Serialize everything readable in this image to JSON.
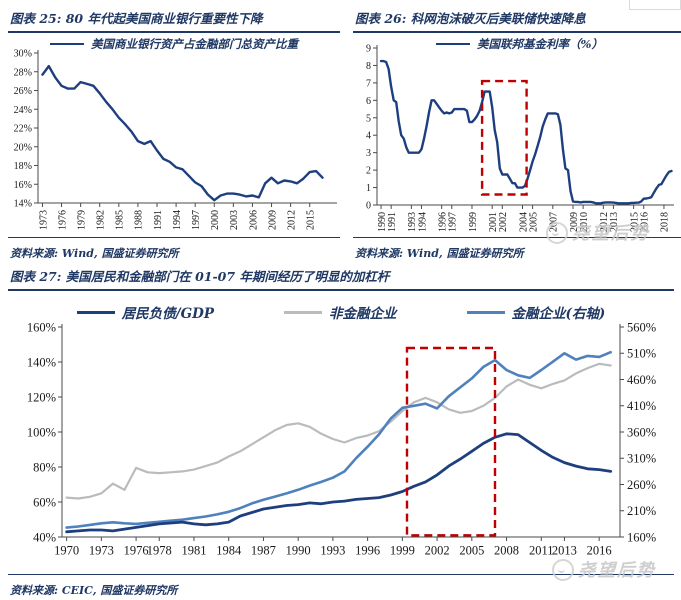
{
  "page": {
    "watermark": "尧望后势",
    "colors": {
      "navy_text": "#1f3864",
      "line_navy": "#1e3f7f",
      "series_gray": "#b9bcbf",
      "series_blue": "#4f81bd",
      "highlight_red": "#c00000"
    }
  },
  "figures": [
    {
      "title": "图表 25: 80 年代起美国商业银行重要性下降",
      "source": "资料来源: Wind, 国盛证券研究所"
    },
    {
      "title": "图表 26: 科网泡沫破灭后美联储快速降息",
      "source": "资料来源: Wind, 国盛证券研究所"
    },
    {
      "title": "图表 27: 美国居民和金融部门在 01-07 年期间经历了明显的加杠杆",
      "source": "资料来源: CEIC, 国盛证券研究所"
    }
  ],
  "chart_data": [
    {
      "type": "line",
      "title": "80 年代起美国商业银行重要性下降",
      "legend": [
        {
          "label": "美国商业银行资产占金融部门总资产比重",
          "color": "#1e3f7f"
        }
      ],
      "x_ticks": [
        "1973",
        "1976",
        "1979",
        "1982",
        "1985",
        "1988",
        "1991",
        "1994",
        "1997",
        "2000",
        "2003",
        "2006",
        "2009",
        "2012",
        "2015"
      ],
      "y_ticks": [
        "14%",
        "16%",
        "18%",
        "20%",
        "22%",
        "24%",
        "26%",
        "28%",
        "30%"
      ],
      "x_range": [
        1972.3,
        2018.5
      ],
      "y_range": [
        14,
        30
      ],
      "grid": false,
      "series": [
        {
          "name": "美国商业银行资产占金融部门总资产比重",
          "axis": "left",
          "color": "#1e3f7f",
          "x_start": 1973,
          "x_step": 1,
          "values": [
            27.7,
            28.6,
            27.4,
            26.5,
            26.2,
            26.2,
            26.9,
            26.7,
            26.5,
            25.7,
            24.8,
            24.0,
            23.1,
            22.4,
            21.6,
            20.6,
            20.3,
            20.6,
            19.6,
            18.7,
            18.4,
            17.8,
            17.6,
            16.9,
            16.2,
            15.8,
            14.9,
            14.3,
            14.8,
            15.0,
            15.0,
            14.9,
            14.7,
            14.8,
            14.6,
            16.1,
            16.7,
            16.1,
            16.4,
            16.3,
            16.1,
            16.6,
            17.3,
            17.4,
            16.7
          ]
        }
      ]
    },
    {
      "type": "line",
      "title": "科网泡沫破灭后美联储快速降息",
      "legend": [
        {
          "label": "美国联邦基金利率（%）",
          "color": "#1e3f7f"
        }
      ],
      "x_ticks": [
        "1990",
        "1991",
        "1993",
        "1994",
        "1996",
        "1997",
        "1999",
        "2001",
        "2002",
        "2004",
        "2005",
        "2007",
        "2009",
        "2010",
        "2012",
        "2013",
        "2015",
        "2016",
        "2018"
      ],
      "y_ticks": [
        "0",
        "1",
        "2",
        "3",
        "4",
        "5",
        "6",
        "7",
        "8",
        "9"
      ],
      "x_range": [
        1989.6,
        2018.5
      ],
      "y_range": [
        0,
        9
      ],
      "grid": false,
      "series": [
        {
          "name": "美国联邦基金利率（%）",
          "axis": "left",
          "color": "#1e3f7f",
          "x_start": 1990,
          "x_step": 0.25,
          "values": [
            8.25,
            8.25,
            8.2,
            7.8,
            6.8,
            6.0,
            5.9,
            4.8,
            4.0,
            3.8,
            3.3,
            3.0,
            3.0,
            3.0,
            3.0,
            3.0,
            3.2,
            3.8,
            4.5,
            5.3,
            6.0,
            6.0,
            5.8,
            5.6,
            5.4,
            5.25,
            5.3,
            5.25,
            5.3,
            5.5,
            5.5,
            5.5,
            5.5,
            5.5,
            5.4,
            4.75,
            4.75,
            4.9,
            5.1,
            5.4,
            5.9,
            6.5,
            6.5,
            6.5,
            5.6,
            4.3,
            3.6,
            2.1,
            1.75,
            1.75,
            1.75,
            1.5,
            1.25,
            1.25,
            1.0,
            1.0,
            1.0,
            1.1,
            1.5,
            2.0,
            2.5,
            2.9,
            3.4,
            3.9,
            4.5,
            4.9,
            5.25,
            5.25,
            5.25,
            5.25,
            5.2,
            4.6,
            3.2,
            2.1,
            2.0,
            0.8,
            0.2,
            0.18,
            0.18,
            0.15,
            0.18,
            0.18,
            0.18,
            0.18,
            0.15,
            0.1,
            0.1,
            0.1,
            0.13,
            0.15,
            0.15,
            0.15,
            0.14,
            0.12,
            0.1,
            0.1,
            0.1,
            0.1,
            0.1,
            0.12,
            0.12,
            0.13,
            0.14,
            0.2,
            0.36,
            0.37,
            0.4,
            0.45,
            0.7,
            0.95,
            1.15,
            1.2,
            1.45,
            1.7,
            1.9,
            1.95
          ]
        }
      ],
      "annotations": [
        {
          "type": "dashed-box",
          "color": "#c00000",
          "x": [
            2000,
            2004.4
          ],
          "y": [
            0.6,
            7.1
          ]
        }
      ]
    },
    {
      "type": "line",
      "title": "美国居民和金融部门在 01-07 年期间经历了明显的加杠杆",
      "legend": [
        {
          "label": "居民负债/GDP",
          "color": "#1e3f7f"
        },
        {
          "label": "非金融企业",
          "color": "#b9bcbf"
        },
        {
          "label": "金融企业(右轴)",
          "color": "#4f81bd"
        }
      ],
      "x_ticks": [
        "1970",
        "1973",
        "1976",
        "1978",
        "1981",
        "1984",
        "1987",
        "1990",
        "1993",
        "1996",
        "1999",
        "2002",
        "2005",
        "2008",
        "2011",
        "2013",
        "2016"
      ],
      "y_ticks": [
        "40%",
        "60%",
        "80%",
        "100%",
        "120%",
        "140%",
        "160%"
      ],
      "y2_ticks": [
        "160%",
        "210%",
        "260%",
        "310%",
        "360%",
        "410%",
        "460%",
        "510%",
        "560%"
      ],
      "x_range": [
        1969.6,
        2017.8
      ],
      "y_range": [
        40,
        160
      ],
      "y2_range": [
        160,
        560
      ],
      "grid": false,
      "series": [
        {
          "name": "非金融企业",
          "axis": "left",
          "color": "#b9bcbf",
          "x_start": 1970,
          "x_step": 1,
          "values": [
            62.5,
            62,
            63,
            65,
            70.5,
            67,
            79.5,
            77,
            76.5,
            77,
            77.5,
            78.5,
            80.5,
            82.5,
            86,
            89,
            93,
            97,
            101,
            104,
            105,
            103,
            99,
            96,
            94,
            96.5,
            98,
            100.5,
            106,
            112,
            117,
            119.5,
            117,
            113,
            111,
            112,
            115,
            119.5,
            126,
            130,
            127,
            125,
            127.5,
            129.5,
            133.5,
            136.5,
            139,
            138
          ]
        },
        {
          "name": "金融企业(右轴)",
          "axis": "right",
          "color": "#4f81bd",
          "x_start": 1970,
          "x_step": 1,
          "values": [
            178,
            180,
            183,
            186,
            188,
            186,
            185,
            187,
            189,
            191,
            193,
            196,
            199,
            203,
            208,
            215,
            224,
            231,
            237,
            243,
            250,
            258,
            265,
            273,
            285,
            310,
            332,
            356,
            386,
            406,
            410,
            414,
            405,
            428,
            445,
            462,
            484,
            497,
            478,
            468,
            463,
            478,
            494,
            510,
            498,
            505,
            503,
            512
          ]
        },
        {
          "name": "居民负债/GDP",
          "axis": "left",
          "color": "#1e3f7f",
          "x_start": 1970,
          "x_step": 1,
          "values": [
            43,
            43.5,
            44,
            44,
            43.5,
            44.5,
            45.5,
            46.5,
            47.5,
            48,
            48.5,
            47.5,
            47,
            47.5,
            48.5,
            52,
            54,
            56,
            57,
            58,
            58.5,
            59.5,
            59,
            60,
            60.5,
            61.5,
            62,
            62.5,
            64,
            66,
            69,
            71.5,
            75.5,
            80.5,
            84.5,
            89,
            93.5,
            97,
            99,
            98.5,
            94,
            89.5,
            85.5,
            82.5,
            80.5,
            79,
            78.5,
            77.5
          ]
        }
      ],
      "annotations": [
        {
          "type": "dashed-box",
          "color": "#c00000",
          "x": [
            1999.4,
            2007.0
          ],
          "y": [
            41,
            148
          ]
        }
      ]
    }
  ]
}
